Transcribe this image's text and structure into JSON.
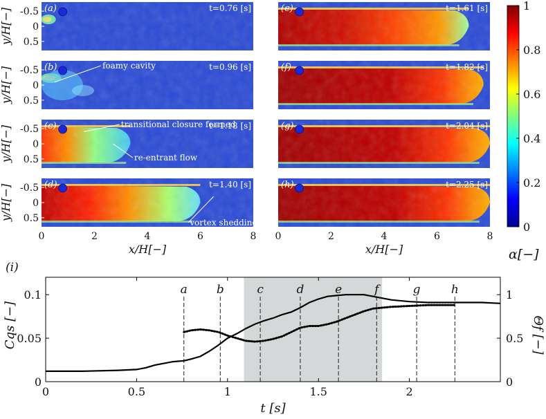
{
  "chart_data": [
    {
      "type": "heatmap",
      "colorbar": {
        "min": 0,
        "max": 1,
        "ticks": [
          0,
          0.2,
          0.4,
          0.6,
          0.8,
          1
        ],
        "tick_labels": [
          "0",
          "0.2",
          "0.4",
          "0.6",
          "0.8",
          "1"
        ],
        "label": "α[−]",
        "colormap": "jet"
      },
      "xlabel": "x/H[−]",
      "ylabel": "y/H[−]",
      "x_ticks": [
        0,
        2,
        4,
        6,
        8
      ],
      "y_ticks": [
        -0.5,
        0,
        0.5
      ],
      "y_tick_labels": [
        "-0.5",
        "0",
        "0.5"
      ],
      "panels": [
        {
          "id": "a",
          "label": "(a)",
          "time": "t=0.76 [s]",
          "fill": 0.05,
          "annotations": []
        },
        {
          "id": "b",
          "label": "(b)",
          "time": "t=0.96 [s]",
          "fill": 0.09,
          "annotations": [
            {
              "text": "foamy cavity",
              "at_x": 0.5,
              "at_y": -0.1,
              "text_x": 2.3,
              "text_y": -0.55
            }
          ]
        },
        {
          "id": "c",
          "label": "(c)",
          "time": "t=1.18 [s]",
          "fill": 0.42,
          "annotations": [
            {
              "text": "transitional closure formed",
              "at_x": 1.6,
              "at_y": -0.4,
              "text_x": 3.0,
              "text_y": -0.55
            },
            {
              "text": "re-entrant flow",
              "at_x": 2.7,
              "at_y": 0.0,
              "text_x": 3.5,
              "text_y": 0.55
            }
          ]
        },
        {
          "id": "d",
          "label": "(d)",
          "time": "t=1.40 [s]",
          "fill": 0.75,
          "annotations": [
            {
              "text": "vortex shedding",
              "at_x": 6.5,
              "at_y": -0.2,
              "text_x": 5.6,
              "text_y": 0.75
            }
          ]
        },
        {
          "id": "e",
          "label": "(e)",
          "time": "t=1.61 [s]",
          "fill": 0.9,
          "annotations": []
        },
        {
          "id": "f",
          "label": "(f)",
          "time": "t=1.82 [s]",
          "fill": 0.97,
          "annotations": []
        },
        {
          "id": "g",
          "label": "(g)",
          "time": "t=2.04 [s]",
          "fill": 1.0,
          "annotations": []
        },
        {
          "id": "h",
          "label": "(h)",
          "time": "t=2.25 [s]",
          "fill": 1.0,
          "annotations": []
        }
      ]
    },
    {
      "type": "line",
      "panel_label": "(i)",
      "xlabel": "t [s]",
      "ylabel_left": "Cqs [−]",
      "ylabel_right": "Θf [−]",
      "xlim": [
        0,
        2.5
      ],
      "ylim_left": [
        0,
        0.12
      ],
      "ylim_right": [
        0,
        1.2
      ],
      "x_ticks": [
        0,
        0.5,
        1,
        1.5,
        2
      ],
      "x_tick_labels": [
        "0",
        "0.5",
        "1",
        "1.5",
        "2"
      ],
      "y_ticks_left": [
        0,
        0.05,
        0.1
      ],
      "y_tick_labels_left": [
        "0",
        "0.05",
        "0.1"
      ],
      "y_ticks_right": [
        0,
        0.5,
        1
      ],
      "y_tick_labels_right": [
        "0",
        "0.5",
        "1"
      ],
      "shaded_region": [
        1.09,
        1.85
      ],
      "events": [
        {
          "label": "a",
          "t": 0.76
        },
        {
          "label": "b",
          "t": 0.96
        },
        {
          "label": "c",
          "t": 1.18
        },
        {
          "label": "d",
          "t": 1.4
        },
        {
          "label": "e",
          "t": 1.61
        },
        {
          "label": "f",
          "t": 1.82
        },
        {
          "label": "g",
          "t": 2.04
        },
        {
          "label": "h",
          "t": 2.25
        }
      ],
      "series": [
        {
          "axis": "left",
          "style": "solid",
          "x": [
            0,
            0.2,
            0.4,
            0.5,
            0.55,
            0.6,
            0.65,
            0.7,
            0.76,
            0.8,
            0.85,
            0.9,
            0.95,
            1.0,
            1.05,
            1.1,
            1.15,
            1.2,
            1.25,
            1.3,
            1.35,
            1.4,
            1.45,
            1.5,
            1.55,
            1.6,
            1.65,
            1.7,
            1.75,
            1.8,
            1.85,
            1.9,
            2.0,
            2.1,
            2.2,
            2.3,
            2.4,
            2.5
          ],
          "y": [
            0.012,
            0.012,
            0.013,
            0.014,
            0.016,
            0.019,
            0.021,
            0.023,
            0.024,
            0.026,
            0.029,
            0.035,
            0.042,
            0.05,
            0.055,
            0.061,
            0.066,
            0.07,
            0.073,
            0.077,
            0.08,
            0.085,
            0.091,
            0.095,
            0.098,
            0.099,
            0.1,
            0.1,
            0.1,
            0.098,
            0.096,
            0.094,
            0.092,
            0.091,
            0.091,
            0.091,
            0.091,
            0.09
          ]
        },
        {
          "axis": "right",
          "style": "dotted",
          "x": [
            0.76,
            0.8,
            0.85,
            0.9,
            0.95,
            1.0,
            1.05,
            1.1,
            1.15,
            1.2,
            1.25,
            1.3,
            1.35,
            1.4,
            1.45,
            1.5,
            1.55,
            1.6,
            1.65,
            1.7,
            1.75,
            1.8,
            1.9,
            2.0,
            2.1,
            2.2,
            2.25
          ],
          "y": [
            0.57,
            0.59,
            0.6,
            0.59,
            0.57,
            0.53,
            0.5,
            0.47,
            0.46,
            0.47,
            0.49,
            0.52,
            0.57,
            0.62,
            0.64,
            0.64,
            0.66,
            0.69,
            0.73,
            0.77,
            0.81,
            0.84,
            0.86,
            0.87,
            0.88,
            0.88,
            0.88
          ]
        }
      ]
    }
  ]
}
